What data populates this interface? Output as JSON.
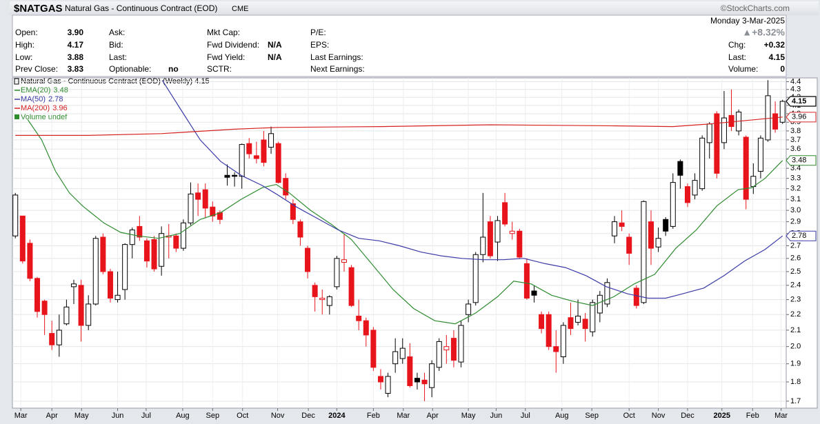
{
  "header": {
    "symbol": "$NATGAS",
    "name": "Natural Gas - Continuous Contract (EOD)",
    "exchange": "CME",
    "credit": "©StockCharts.com",
    "date": "Monday 3-Mar-2025",
    "change_pct": "▲+8.32%"
  },
  "quote": {
    "columns": [
      [
        {
          "label": "Open:",
          "value": "3.90"
        },
        {
          "label": "High:",
          "value": "4.17"
        },
        {
          "label": "Low:",
          "value": "3.88"
        },
        {
          "label": "Prev Close:",
          "value": "3.83"
        }
      ],
      [
        {
          "label": "Ask:"
        },
        {
          "label": "Bid:"
        },
        {
          "label": "Last:"
        },
        {
          "label": "Optionable:",
          "value": "no"
        }
      ],
      [
        {
          "label": "Mkt Cap:"
        },
        {
          "label": "Fwd Dividend:",
          "value": "N/A"
        },
        {
          "label": "Fwd Yield:",
          "value": "N/A"
        },
        {
          "label": "SCTR:"
        }
      ],
      [
        {
          "label": "P/E:"
        },
        {
          "label": "EPS:"
        },
        {
          "label": "Last Earnings:"
        },
        {
          "label": "Next Earnings:"
        }
      ]
    ],
    "right": [
      {
        "label": "Chg:",
        "value": "+0.32"
      },
      {
        "label": "Last:",
        "value": "4.15"
      },
      {
        "label": "Volume:",
        "value": "0"
      }
    ]
  },
  "chart_data": {
    "type": "candlestick",
    "title": "Natural Gas - Continuous Contract (EOD) (Weekly) 4.15",
    "volume_label": "Volume undef",
    "scale": "log",
    "grid": true,
    "up_color": "#000000",
    "down_color": "#e8141b",
    "xlim": [
      -0.4,
      105.5
    ],
    "xticks": [
      {
        "value": 0.75,
        "label": "Mar"
      },
      {
        "value": 5.0,
        "label": "Apr"
      },
      {
        "value": 9.06,
        "label": "May"
      },
      {
        "value": 14.0,
        "label": "Jun"
      },
      {
        "value": 17.9,
        "label": "Jul"
      },
      {
        "value": 22.9,
        "label": "Aug"
      },
      {
        "value": 27.0,
        "label": "Sep"
      },
      {
        "value": 31.1,
        "label": "Oct"
      },
      {
        "value": 35.9,
        "label": "Nov"
      },
      {
        "value": 40.1,
        "label": "Dec"
      },
      {
        "value": 44.0,
        "label": "2024"
      },
      {
        "value": 49.0,
        "label": "Feb"
      },
      {
        "value": 53.1,
        "label": "Mar"
      },
      {
        "value": 57.1,
        "label": "Apr"
      },
      {
        "value": 62.0,
        "label": "May"
      },
      {
        "value": 65.8,
        "label": "Jun"
      },
      {
        "value": 69.8,
        "label": "Jul"
      },
      {
        "value": 74.8,
        "label": "Aug"
      },
      {
        "value": 78.9,
        "label": "Sep"
      },
      {
        "value": 84.0,
        "label": "Oct"
      },
      {
        "value": 88.0,
        "label": "Nov"
      },
      {
        "value": 92.0,
        "label": "Dec"
      },
      {
        "value": 96.7,
        "label": "2025"
      },
      {
        "value": 100.9,
        "label": "Feb"
      },
      {
        "value": 104.8,
        "label": "Mar"
      }
    ],
    "ylim": [
      1.665,
      4.45
    ],
    "yticks": [
      1.7,
      1.8,
      1.9,
      {
        "value": 2.0,
        "label": "2.0"
      },
      2.1,
      2.2,
      2.3,
      2.4,
      2.5,
      2.6,
      2.7,
      2.8,
      2.9,
      {
        "value": 3.0,
        "label": "3.0"
      },
      3.1,
      3.2,
      3.3,
      3.4,
      3.5,
      3.6,
      3.7,
      3.8,
      3.9,
      {
        "value": 4.0,
        "label": "4.0"
      },
      4.1,
      4.2,
      4.3,
      4.4
    ],
    "open": [
      2.78,
      2.95,
      2.72,
      2.45,
      2.29,
      2.08,
      2.01,
      2.14,
      2.39,
      2.4,
      2.13,
      2.27,
      2.77,
      2.5,
      2.3,
      2.37,
      2.71,
      2.86,
      2.74,
      2.75,
      2.54,
      2.77,
      2.78,
      2.68,
      2.89,
      3.16,
      3.19,
      3.03,
      2.98,
      3.33,
      3.33,
      3.32,
      3.66,
      3.53,
      3.7,
      3.62,
      3.66,
      3.3,
      3.06,
      2.9,
      2.68,
      2.4,
      2.3,
      2.26,
      2.39,
      2.57,
      2.53,
      2.19,
      2.16,
      2.1,
      1.83,
      1.74,
      1.9,
      1.93,
      1.94,
      1.82,
      1.81,
      1.77,
      1.88,
      1.98,
      2.05,
      1.91,
      2.2,
      2.28,
      2.63,
      2.9,
      2.73,
      3.07,
      2.8,
      2.82,
      2.56,
      2.36,
      2.2,
      2.2,
      2.0,
      1.94,
      2.18,
      2.15,
      2.17,
      2.09,
      2.21,
      2.27,
      2.78,
      2.89,
      2.77,
      2.38,
      2.28,
      2.9,
      2.69,
      2.92,
      2.86,
      3.47,
      3.22,
      3.14,
      3.2,
      3.67,
      4.0,
      3.67,
      3.98,
      3.8,
      3.73,
      3.22,
      3.37,
      3.7,
      4.0,
      3.9
    ],
    "high": [
      3.16,
      2.95,
      2.75,
      2.46,
      2.3,
      2.16,
      2.2,
      2.3,
      2.44,
      2.44,
      2.33,
      2.78,
      2.8,
      2.52,
      2.5,
      2.72,
      2.85,
      2.95,
      2.76,
      2.78,
      2.86,
      2.88,
      2.8,
      2.92,
      3.26,
      3.25,
      3.25,
      3.08,
      3.0,
      3.44,
      3.36,
      3.66,
      3.72,
      3.68,
      3.8,
      3.85,
      3.68,
      3.35,
      3.1,
      2.92,
      2.7,
      2.42,
      2.37,
      2.33,
      2.62,
      2.8,
      2.55,
      2.3,
      2.18,
      2.12,
      1.87,
      1.85,
      2.05,
      2.05,
      2.02,
      1.85,
      1.85,
      1.92,
      2.05,
      2.07,
      2.1,
      2.16,
      2.3,
      2.65,
      3.16,
      2.95,
      2.95,
      3.16,
      2.9,
      2.84,
      2.6,
      2.4,
      2.22,
      2.22,
      2.1,
      2.15,
      2.28,
      2.3,
      2.21,
      2.3,
      2.36,
      2.45,
      2.95,
      3.0,
      2.8,
      2.4,
      3.09,
      3.0,
      2.85,
      2.94,
      3.35,
      3.49,
      3.25,
      3.35,
      3.75,
      3.9,
      4.03,
      4.28,
      4.3,
      4.05,
      3.75,
      3.45,
      3.75,
      4.42,
      4.15,
      4.17
    ],
    "low": [
      2.76,
      2.56,
      2.43,
      2.18,
      2.07,
      1.98,
      1.94,
      2.13,
      2.27,
      2.03,
      2.1,
      2.26,
      2.48,
      2.28,
      2.28,
      2.3,
      2.6,
      2.74,
      2.53,
      2.5,
      2.47,
      2.6,
      2.65,
      2.66,
      2.87,
      2.95,
      2.93,
      2.9,
      2.88,
      3.23,
      3.22,
      3.2,
      3.5,
      3.45,
      3.42,
      3.55,
      3.25,
      3.1,
      2.88,
      2.7,
      2.45,
      2.22,
      2.2,
      2.2,
      2.37,
      2.5,
      2.25,
      2.1,
      2.0,
      1.86,
      1.76,
      1.72,
      1.85,
      1.9,
      1.77,
      1.76,
      1.7,
      1.72,
      1.86,
      1.9,
      1.88,
      1.88,
      2.15,
      2.26,
      2.57,
      2.6,
      2.58,
      2.86,
      2.75,
      2.6,
      2.3,
      2.28,
      2.08,
      1.98,
      1.85,
      1.9,
      2.07,
      2.13,
      2.03,
      2.06,
      2.15,
      2.25,
      2.72,
      2.82,
      2.55,
      2.24,
      2.27,
      2.55,
      2.65,
      2.78,
      2.84,
      3.2,
      3.03,
      3.1,
      3.18,
      3.5,
      3.3,
      3.6,
      3.8,
      3.75,
      3.01,
      3.15,
      3.3,
      3.68,
      3.78,
      3.88
    ],
    "close": [
      3.14,
      2.58,
      2.45,
      2.22,
      2.2,
      2.01,
      2.1,
      2.25,
      2.41,
      2.13,
      2.27,
      2.76,
      2.5,
      2.31,
      2.33,
      2.71,
      2.83,
      2.77,
      2.58,
      2.52,
      2.8,
      2.78,
      2.68,
      2.89,
      3.15,
      3.1,
      3.02,
      2.95,
      2.92,
      3.31,
      3.32,
      3.65,
      3.55,
      3.5,
      3.46,
      3.77,
      3.26,
      3.14,
      2.92,
      2.77,
      2.5,
      2.32,
      2.31,
      2.32,
      2.6,
      2.59,
      2.26,
      2.16,
      2.07,
      1.88,
      1.8,
      1.83,
      1.97,
      1.99,
      1.78,
      1.8,
      1.79,
      1.9,
      2.03,
      2.0,
      1.92,
      2.13,
      2.27,
      2.63,
      2.77,
      2.62,
      2.91,
      2.88,
      2.82,
      2.61,
      2.31,
      2.33,
      2.11,
      2.0,
      1.97,
      2.13,
      2.11,
      2.19,
      2.11,
      2.28,
      2.33,
      2.42,
      2.9,
      2.86,
      2.64,
      2.26,
      3.08,
      2.68,
      2.76,
      2.82,
      3.26,
      3.33,
      3.07,
      3.28,
      3.72,
      3.88,
      3.35,
      3.95,
      3.85,
      4.02,
      3.1,
      3.32,
      3.72,
      4.22,
      3.82,
      4.15
    ],
    "overlays": [
      {
        "name": "EMA(20)",
        "color": "#2e8b2e",
        "x": [
          1.7,
          3.6,
          5.5,
          7.4,
          9.2,
          12.1,
          14.4,
          16.8,
          19.6,
          22.5,
          25.3,
          28.1,
          30.9,
          33.8,
          35.7,
          37.5,
          40.4,
          43.2,
          46,
          48.9,
          51.7,
          54.5,
          57.4,
          60.2,
          63,
          66,
          68.2,
          70.6,
          73.4,
          76.2,
          79,
          81.9,
          84.7,
          87.5,
          90.4,
          93.2,
          96,
          98.9,
          100.8,
          102.6,
          105
        ],
        "values": [
          3.93,
          3.7,
          3.37,
          3.16,
          3.04,
          2.89,
          2.81,
          2.78,
          2.76,
          2.8,
          2.92,
          2.98,
          3.1,
          3.21,
          3.24,
          3.16,
          3.0,
          2.88,
          2.75,
          2.55,
          2.37,
          2.24,
          2.16,
          2.14,
          2.21,
          2.32,
          2.43,
          2.41,
          2.33,
          2.29,
          2.26,
          2.32,
          2.41,
          2.48,
          2.68,
          2.83,
          3.04,
          3.19,
          3.21,
          3.3,
          3.48
        ]
      },
      {
        "name": "MA(50)",
        "color": "#3a3aa8",
        "x": [
          20.1,
          22.5,
          25.3,
          28.1,
          30.9,
          33.8,
          35.7,
          38.5,
          41.3,
          44.2,
          47,
          49.8,
          52.6,
          55.5,
          58.3,
          61.1,
          64,
          66.8,
          69.6,
          72.5,
          75.3,
          78.1,
          80.9,
          83.8,
          86.6,
          89,
          91.3,
          94.2,
          97,
          99.8,
          102.6,
          105
        ],
        "values": [
          4.42,
          4.07,
          3.7,
          3.47,
          3.33,
          3.23,
          3.15,
          3.03,
          2.93,
          2.83,
          2.76,
          2.74,
          2.7,
          2.65,
          2.62,
          2.6,
          2.59,
          2.59,
          2.6,
          2.56,
          2.53,
          2.47,
          2.39,
          2.34,
          2.31,
          2.31,
          2.34,
          2.38,
          2.47,
          2.58,
          2.67,
          2.78
        ]
      },
      {
        "name": "MA(200)",
        "color": "#d62020",
        "x": [
          0,
          10,
          20,
          30,
          36,
          50,
          65,
          80,
          90,
          95,
          100,
          105
        ],
        "values": [
          3.75,
          3.75,
          3.77,
          3.82,
          3.84,
          3.85,
          3.87,
          3.86,
          3.85,
          3.88,
          3.92,
          3.96
        ]
      }
    ]
  }
}
